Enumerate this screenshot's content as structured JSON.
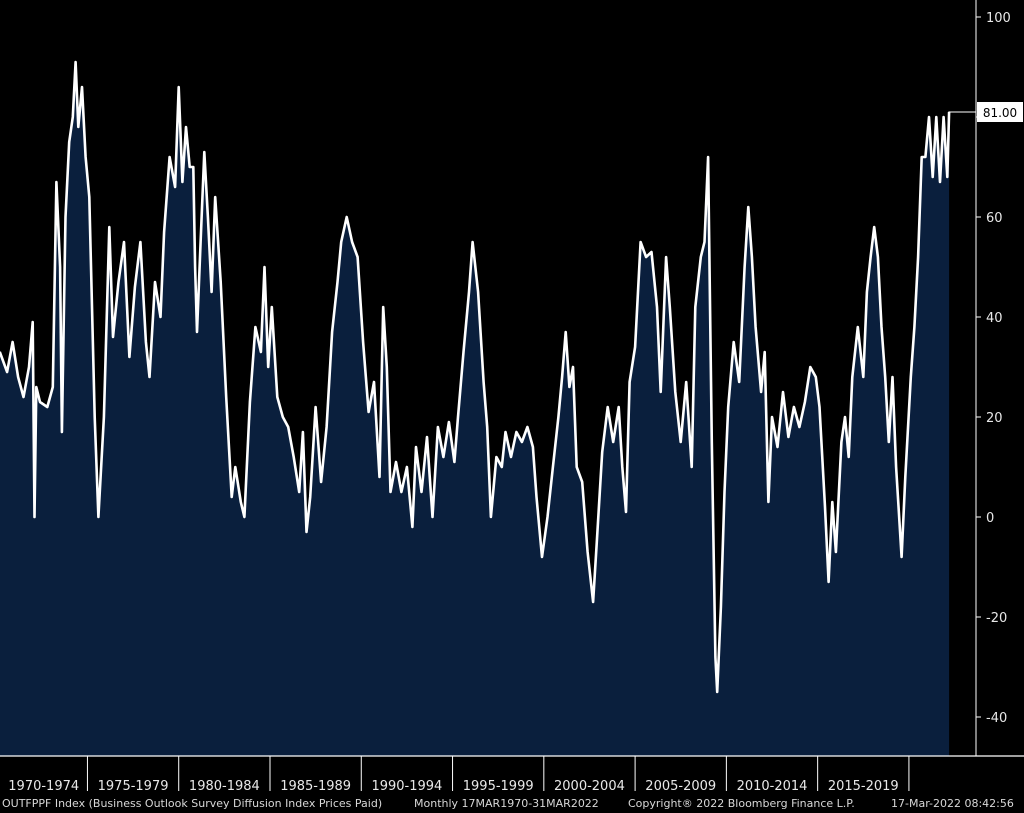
{
  "chart_data": {
    "type": "area",
    "title": "",
    "xlabel": "",
    "ylabel": "",
    "ylim": [
      -48,
      104
    ],
    "y_ticks": [
      100,
      80,
      60,
      40,
      20,
      0,
      -20,
      -40
    ],
    "x_range": [
      1970.21,
      2022.25
    ],
    "x_period_labels": [
      "1970-1974",
      "1975-1979",
      "1980-1984",
      "1985-1989",
      "1990-1994",
      "1995-1999",
      "2000-2004",
      "2005-2009",
      "2010-2014",
      "2015-2019"
    ],
    "last_value_label": "81.00",
    "last_value": 81.0,
    "fill_color": "#0a1f3d",
    "line_color": "#ffffff",
    "grid": false,
    "legend": "none",
    "points": [
      [
        1970.2,
        33
      ],
      [
        1970.6,
        29
      ],
      [
        1970.9,
        35
      ],
      [
        1971.2,
        28
      ],
      [
        1971.5,
        24
      ],
      [
        1971.8,
        30
      ],
      [
        1972.0,
        39
      ],
      [
        1972.1,
        0
      ],
      [
        1972.2,
        26
      ],
      [
        1972.4,
        23
      ],
      [
        1972.8,
        22
      ],
      [
        1973.1,
        26
      ],
      [
        1973.3,
        67
      ],
      [
        1973.5,
        50
      ],
      [
        1973.6,
        17
      ],
      [
        1973.8,
        60
      ],
      [
        1974.0,
        75
      ],
      [
        1974.2,
        80
      ],
      [
        1974.35,
        91
      ],
      [
        1974.5,
        78
      ],
      [
        1974.7,
        86
      ],
      [
        1974.9,
        72
      ],
      [
        1975.1,
        64
      ],
      [
        1975.4,
        20
      ],
      [
        1975.6,
        0
      ],
      [
        1975.9,
        20
      ],
      [
        1976.2,
        58
      ],
      [
        1976.4,
        36
      ],
      [
        1976.7,
        47
      ],
      [
        1977.0,
        55
      ],
      [
        1977.3,
        32
      ],
      [
        1977.6,
        46
      ],
      [
        1977.9,
        55
      ],
      [
        1978.2,
        35
      ],
      [
        1978.4,
        28
      ],
      [
        1978.7,
        47
      ],
      [
        1979.0,
        40
      ],
      [
        1979.2,
        57
      ],
      [
        1979.5,
        72
      ],
      [
        1979.8,
        66
      ],
      [
        1980.0,
        86
      ],
      [
        1980.2,
        67
      ],
      [
        1980.4,
        78
      ],
      [
        1980.6,
        70
      ],
      [
        1980.8,
        70
      ],
      [
        1980.9,
        50
      ],
      [
        1981.0,
        37
      ],
      [
        1981.2,
        55
      ],
      [
        1981.4,
        73
      ],
      [
        1981.6,
        60
      ],
      [
        1981.8,
        45
      ],
      [
        1982.0,
        64
      ],
      [
        1982.3,
        47
      ],
      [
        1982.6,
        24
      ],
      [
        1982.9,
        4
      ],
      [
        1983.1,
        10
      ],
      [
        1983.4,
        3
      ],
      [
        1983.6,
        0
      ],
      [
        1983.9,
        23
      ],
      [
        1984.2,
        38
      ],
      [
        1984.5,
        33
      ],
      [
        1984.7,
        50
      ],
      [
        1984.9,
        30
      ],
      [
        1985.1,
        42
      ],
      [
        1985.4,
        24
      ],
      [
        1985.7,
        20
      ],
      [
        1986.0,
        18
      ],
      [
        1986.3,
        12
      ],
      [
        1986.6,
        5
      ],
      [
        1986.8,
        17
      ],
      [
        1987.0,
        -3
      ],
      [
        1987.2,
        4
      ],
      [
        1987.5,
        22
      ],
      [
        1987.8,
        7
      ],
      [
        1988.1,
        18
      ],
      [
        1988.4,
        37
      ],
      [
        1988.7,
        47
      ],
      [
        1988.9,
        55
      ],
      [
        1989.2,
        60
      ],
      [
        1989.5,
        55
      ],
      [
        1989.8,
        52
      ],
      [
        1990.1,
        35
      ],
      [
        1990.4,
        21
      ],
      [
        1990.7,
        27
      ],
      [
        1991.0,
        8
      ],
      [
        1991.2,
        42
      ],
      [
        1991.4,
        30
      ],
      [
        1991.6,
        5
      ],
      [
        1991.9,
        11
      ],
      [
        1992.2,
        5
      ],
      [
        1992.5,
        10
      ],
      [
        1992.8,
        -2
      ],
      [
        1993.0,
        14
      ],
      [
        1993.3,
        5
      ],
      [
        1993.6,
        16
      ],
      [
        1993.9,
        0
      ],
      [
        1994.2,
        18
      ],
      [
        1994.5,
        12
      ],
      [
        1994.8,
        19
      ],
      [
        1995.1,
        11
      ],
      [
        1995.3,
        20
      ],
      [
        1995.6,
        33
      ],
      [
        1995.9,
        45
      ],
      [
        1996.1,
        55
      ],
      [
        1996.4,
        45
      ],
      [
        1996.7,
        27
      ],
      [
        1996.9,
        18
      ],
      [
        1997.1,
        0
      ],
      [
        1997.4,
        12
      ],
      [
        1997.7,
        10
      ],
      [
        1997.9,
        17
      ],
      [
        1998.2,
        12
      ],
      [
        1998.5,
        17
      ],
      [
        1998.8,
        15
      ],
      [
        1999.1,
        18
      ],
      [
        1999.4,
        14
      ],
      [
        1999.6,
        4
      ],
      [
        1999.9,
        -8
      ],
      [
        2000.2,
        0
      ],
      [
        2000.5,
        10
      ],
      [
        2000.8,
        20
      ],
      [
        2001.0,
        28
      ],
      [
        2001.2,
        37
      ],
      [
        2001.4,
        26
      ],
      [
        2001.6,
        30
      ],
      [
        2001.8,
        10
      ],
      [
        2002.1,
        7
      ],
      [
        2002.4,
        -7
      ],
      [
        2002.7,
        -17
      ],
      [
        2002.9,
        -5
      ],
      [
        2003.2,
        13
      ],
      [
        2003.5,
        22
      ],
      [
        2003.8,
        15
      ],
      [
        2004.1,
        22
      ],
      [
        2004.3,
        10
      ],
      [
        2004.5,
        1
      ],
      [
        2004.7,
        27
      ],
      [
        2005.0,
        34
      ],
      [
        2005.3,
        55
      ],
      [
        2005.6,
        52
      ],
      [
        2005.9,
        53
      ],
      [
        2006.2,
        42
      ],
      [
        2006.4,
        25
      ],
      [
        2006.7,
        52
      ],
      [
        2006.9,
        42
      ],
      [
        2007.2,
        25
      ],
      [
        2007.5,
        15
      ],
      [
        2007.8,
        27
      ],
      [
        2008.1,
        10
      ],
      [
        2008.3,
        42
      ],
      [
        2008.6,
        52
      ],
      [
        2008.8,
        55
      ],
      [
        2009.0,
        72
      ],
      [
        2009.2,
        15
      ],
      [
        2009.4,
        -28
      ],
      [
        2009.5,
        -35
      ],
      [
        2009.7,
        -18
      ],
      [
        2009.9,
        5
      ],
      [
        2010.1,
        22
      ],
      [
        2010.4,
        35
      ],
      [
        2010.7,
        27
      ],
      [
        2011.0,
        50
      ],
      [
        2011.2,
        62
      ],
      [
        2011.4,
        52
      ],
      [
        2011.6,
        38
      ],
      [
        2011.9,
        25
      ],
      [
        2012.1,
        33
      ],
      [
        2012.3,
        3
      ],
      [
        2012.5,
        20
      ],
      [
        2012.8,
        14
      ],
      [
        2013.1,
        25
      ],
      [
        2013.4,
        16
      ],
      [
        2013.7,
        22
      ],
      [
        2014.0,
        18
      ],
      [
        2014.3,
        23
      ],
      [
        2014.6,
        30
      ],
      [
        2014.9,
        28
      ],
      [
        2015.1,
        22
      ],
      [
        2015.4,
        2
      ],
      [
        2015.6,
        -13
      ],
      [
        2015.8,
        3
      ],
      [
        2016.0,
        -7
      ],
      [
        2016.3,
        15
      ],
      [
        2016.5,
        20
      ],
      [
        2016.7,
        12
      ],
      [
        2016.9,
        28
      ],
      [
        2017.2,
        38
      ],
      [
        2017.5,
        28
      ],
      [
        2017.7,
        45
      ],
      [
        2017.9,
        52
      ],
      [
        2018.1,
        58
      ],
      [
        2018.3,
        52
      ],
      [
        2018.5,
        38
      ],
      [
        2018.7,
        28
      ],
      [
        2018.9,
        15
      ],
      [
        2019.1,
        28
      ],
      [
        2019.3,
        10
      ],
      [
        2019.6,
        -8
      ],
      [
        2019.8,
        8
      ],
      [
        2020.1,
        28
      ],
      [
        2020.3,
        38
      ],
      [
        2020.5,
        52
      ],
      [
        2020.7,
        72
      ],
      [
        2020.9,
        72
      ],
      [
        2021.1,
        80
      ],
      [
        2021.3,
        68
      ],
      [
        2021.5,
        80
      ],
      [
        2021.7,
        67
      ],
      [
        2021.9,
        80
      ],
      [
        2022.1,
        68
      ],
      [
        2022.2,
        81
      ]
    ]
  },
  "footer": {
    "series": "OUTFPPF Index (Business Outlook Survey Diffusion Index Prices Paid)",
    "frequency_range": "Monthly 17MAR1970-31MAR2022",
    "copyright": "Copyright® 2022 Bloomberg Finance L.P.",
    "timestamp": "17-Mar-2022 08:42:56"
  }
}
